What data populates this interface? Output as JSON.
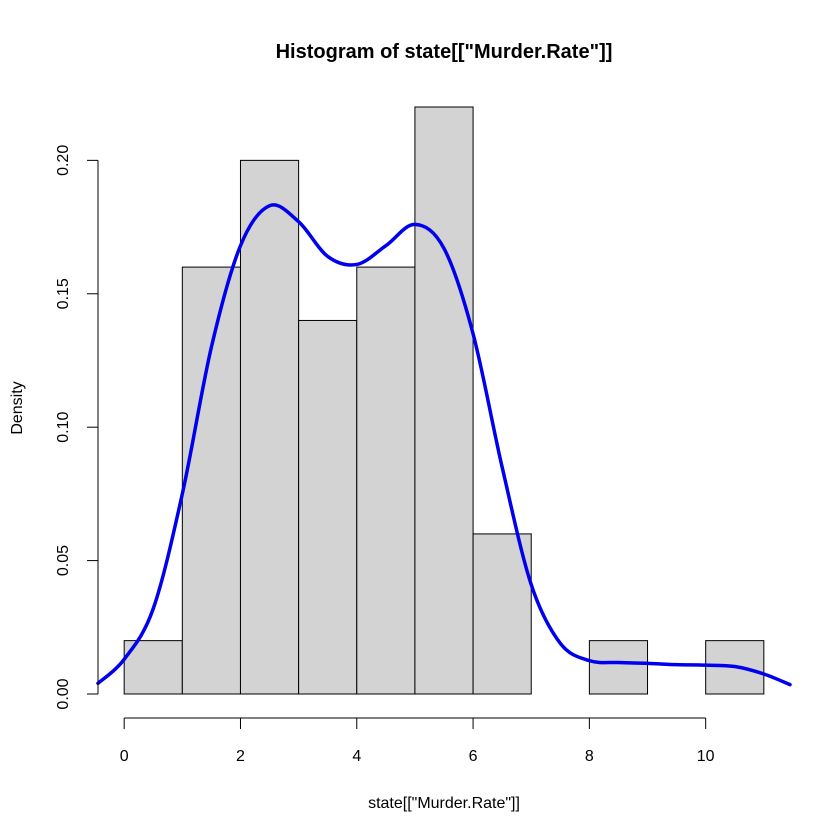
{
  "chart_data": {
    "type": "bar",
    "title": "Histogram of state[[\"Murder.Rate\"]]",
    "xlabel": "state[[\"Murder.Rate\"]]",
    "ylabel": "Density",
    "bins": [
      {
        "start": 0,
        "end": 1,
        "density": 0.02
      },
      {
        "start": 1,
        "end": 2,
        "density": 0.16
      },
      {
        "start": 2,
        "end": 3,
        "density": 0.2
      },
      {
        "start": 3,
        "end": 4,
        "density": 0.14
      },
      {
        "start": 4,
        "end": 5,
        "density": 0.16
      },
      {
        "start": 5,
        "end": 6,
        "density": 0.22
      },
      {
        "start": 6,
        "end": 7,
        "density": 0.06
      },
      {
        "start": 7,
        "end": 8,
        "density": 0.0
      },
      {
        "start": 8,
        "end": 9,
        "density": 0.02
      },
      {
        "start": 9,
        "end": 10,
        "density": 0.0
      },
      {
        "start": 10,
        "end": 11,
        "density": 0.02
      }
    ],
    "x_ticks": [
      0,
      2,
      4,
      6,
      8,
      10
    ],
    "y_ticks": [
      0.0,
      0.05,
      0.1,
      0.15,
      0.2
    ],
    "y_tick_labels": [
      "0.00",
      "0.05",
      "0.10",
      "0.15",
      "0.20"
    ],
    "xlim": [
      -0.45,
      11.45
    ],
    "ylim": [
      0,
      0.22
    ],
    "grid": false,
    "density_curve": {
      "x": [
        -0.45,
        0,
        0.5,
        1,
        1.5,
        2,
        2.5,
        3,
        3.5,
        4,
        4.5,
        5,
        5.5,
        6,
        6.5,
        7,
        7.5,
        8,
        8.5,
        9,
        9.5,
        10,
        10.5,
        11,
        11.45
      ],
      "y": [
        0.004,
        0.013,
        0.032,
        0.075,
        0.13,
        0.168,
        0.183,
        0.177,
        0.164,
        0.161,
        0.168,
        0.176,
        0.167,
        0.135,
        0.085,
        0.041,
        0.019,
        0.0125,
        0.0118,
        0.0115,
        0.011,
        0.0108,
        0.0103,
        0.0075,
        0.0035
      ]
    },
    "colors": {
      "bar_fill": "#d3d3d3",
      "bar_stroke": "#000000",
      "curve": "#0000ee"
    }
  }
}
